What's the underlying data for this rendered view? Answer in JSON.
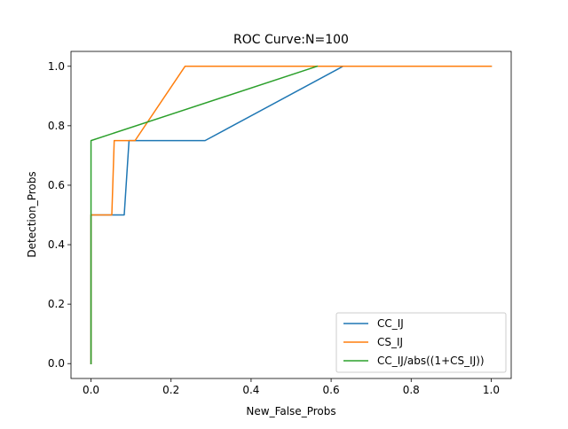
{
  "chart_data": {
    "type": "line",
    "title": "ROC Curve:N=100",
    "xlabel": "New_False_Probs",
    "ylabel": "Detection_Probs",
    "xlim": [
      -0.05,
      1.05
    ],
    "ylim": [
      -0.05,
      1.05
    ],
    "xticks": [
      0.0,
      0.2,
      0.4,
      0.6,
      0.8,
      1.0
    ],
    "yticks": [
      0.0,
      0.2,
      0.4,
      0.6,
      0.8,
      1.0
    ],
    "xtick_labels": [
      "0.0",
      "0.2",
      "0.4",
      "0.6",
      "0.8",
      "1.0"
    ],
    "ytick_labels": [
      "0.0",
      "0.2",
      "0.4",
      "0.6",
      "0.8",
      "1.0"
    ],
    "grid": false,
    "legend_position": "lower-right",
    "series": [
      {
        "name": "CC_IJ",
        "color": "#1f77b4",
        "x": [
          0.0,
          0.0,
          0.0,
          0.083,
          0.095,
          0.285,
          0.63,
          1.0
        ],
        "y": [
          0.0,
          0.5,
          0.5,
          0.5,
          0.75,
          0.75,
          1.0,
          1.0
        ]
      },
      {
        "name": "CS_IJ",
        "color": "#ff7f0e",
        "x": [
          0.0,
          0.0,
          0.052,
          0.058,
          0.11,
          0.235,
          1.0
        ],
        "y": [
          0.0,
          0.5,
          0.5,
          0.75,
          0.75,
          1.0,
          1.0
        ]
      },
      {
        "name": "CC_IJ/abs((1+CS_IJ))",
        "color": "#2ca02c",
        "x": [
          0.0,
          0.0,
          0.0,
          0.565
        ],
        "y": [
          0.0,
          0.5,
          0.75,
          1.0
        ]
      }
    ]
  }
}
